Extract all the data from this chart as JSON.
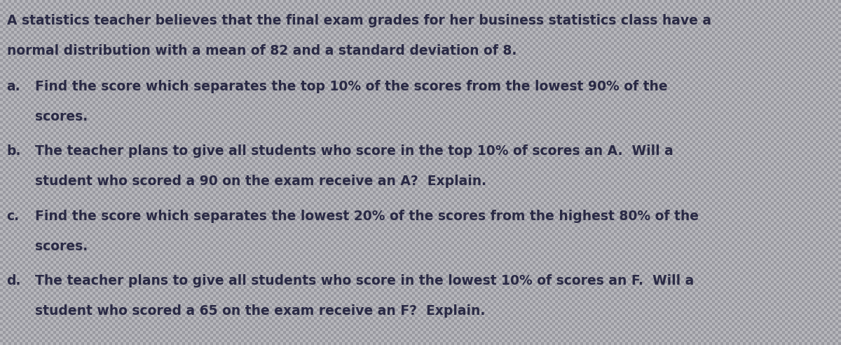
{
  "background_color": "#a8a8b0",
  "text_color": "#2a2a45",
  "title_lines": [
    "A statistics teacher believes that the final exam grades for her business statistics class have a",
    "normal distribution with a mean of 82 and a standard deviation of 8."
  ],
  "items": [
    {
      "label": "a.",
      "lines": [
        "Find the score which separates the top 10% of the scores from the lowest 90% of the",
        "scores."
      ]
    },
    {
      "label": "b.",
      "lines": [
        "The teacher plans to give all students who score in the top 10% of scores an A.  Will a",
        "student who scored a 90 on the exam receive an A?  Explain."
      ]
    },
    {
      "label": "c.",
      "lines": [
        "Find the score which separates the lowest 20% of the scores from the highest 80% of the",
        "scores."
      ]
    },
    {
      "label": "d.",
      "lines": [
        "The teacher plans to give all students who score in the lowest 10% of scores an F.  Will a",
        "student who scored a 65 on the exam receive an F?  Explain."
      ]
    }
  ],
  "title_fontsize": 13.5,
  "item_fontsize": 13.5,
  "fig_width": 12.0,
  "fig_height": 4.92,
  "grid_color_light": "#b8b8c0",
  "grid_color_dark": "#9898a0"
}
